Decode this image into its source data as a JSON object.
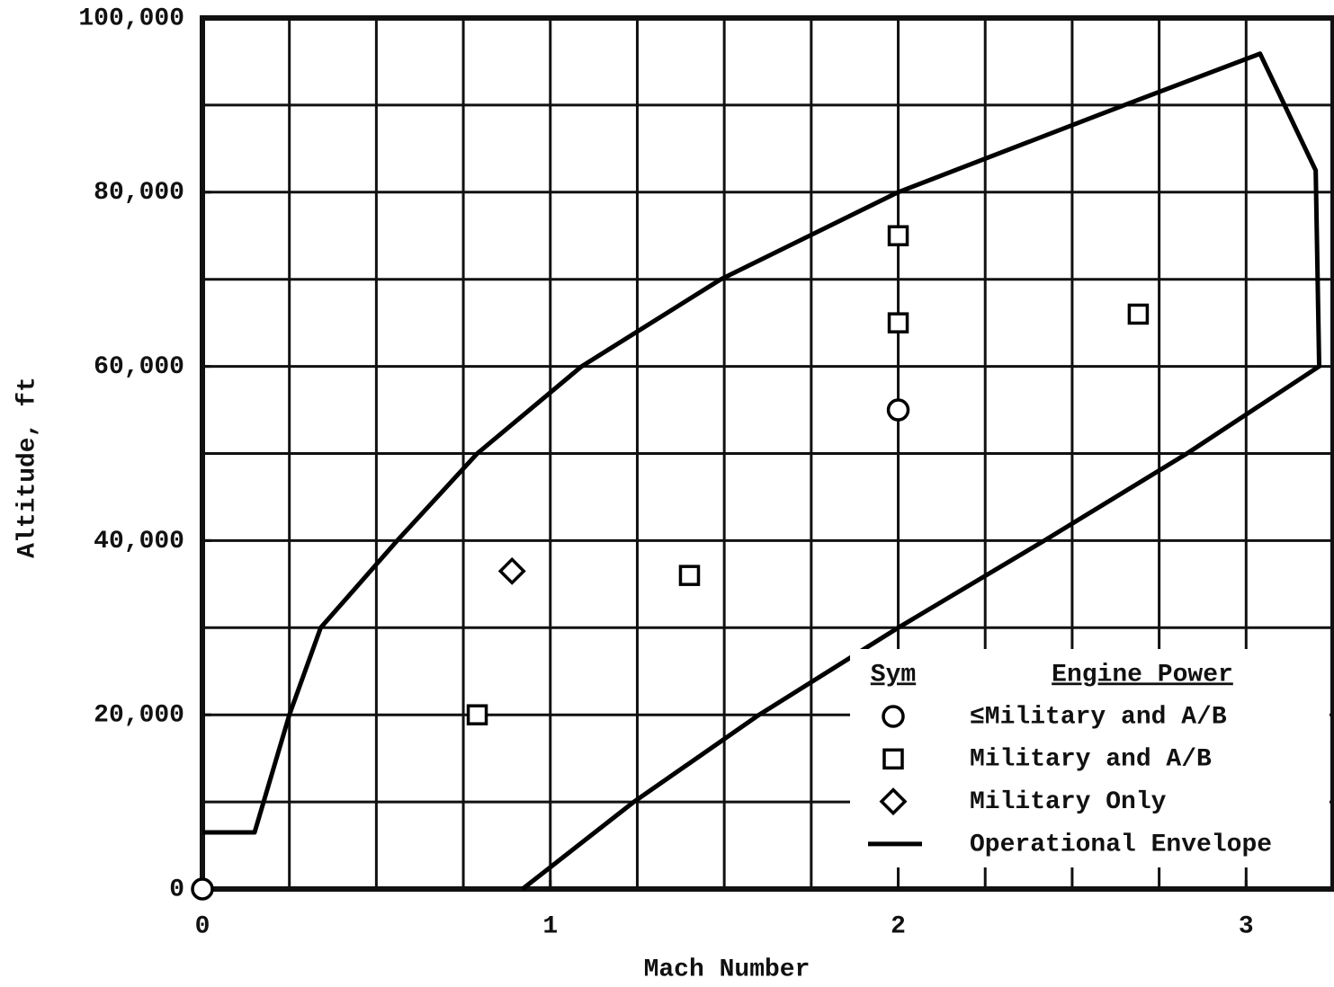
{
  "chart_data": {
    "type": "scatter",
    "xlabel": "Mach Number",
    "ylabel": "Altitude, ft",
    "xlim": [
      0,
      3.25
    ],
    "ylim": [
      0,
      100000
    ],
    "xticks": [
      0,
      1,
      2,
      3
    ],
    "yticks": [
      0,
      {
        "value": 20000,
        "label": "20,000"
      },
      {
        "value": 40000,
        "label": "40,000"
      },
      {
        "value": 60000,
        "label": "60,000"
      },
      {
        "value": 80000,
        "label": "80,000"
      },
      {
        "value": 100000,
        "label": "100,000"
      }
    ],
    "xgrid": [
      0.25,
      0.5,
      0.75,
      1,
      1.25,
      1.5,
      1.75,
      2,
      2.25,
      2.5,
      2.75,
      3
    ],
    "ygrid": [
      10000,
      20000,
      30000,
      40000,
      50000,
      60000,
      70000,
      80000,
      90000
    ],
    "grid": true,
    "legend": "lower right",
    "legend_headers": [
      "Sym",
      "Engine Power"
    ],
    "series": [
      {
        "name": "≤Military and A/B",
        "marker": "circle",
        "color": "#000000",
        "x": [
          0,
          2
        ],
        "values": [
          0,
          55000
        ]
      },
      {
        "name": "Military and A/B",
        "marker": "square",
        "color": "#000000",
        "x": [
          0.79,
          1.4,
          2,
          2,
          2.69
        ],
        "values": [
          20000,
          36000,
          65000,
          75000,
          66000
        ]
      },
      {
        "name": "Military Only",
        "marker": "diamond",
        "color": "#000000",
        "x": [
          0.89
        ],
        "values": [
          36500
        ]
      },
      {
        "name": "Operational Envelope",
        "marker": "line",
        "color": "#000000",
        "x": [
          0,
          0.15,
          0.25,
          0.34,
          0.56,
          0.79,
          1.09,
          1.49,
          2.0,
          2.65,
          3.04,
          3.2,
          3.21,
          2.83,
          2.42,
          2.0,
          1.6,
          1.24,
          0.92
        ],
        "values": [
          6500,
          6500,
          20000,
          30000,
          40000,
          50000,
          60000,
          70000,
          80000,
          90000,
          95900,
          82500,
          60000,
          50000,
          40000,
          30000,
          20000,
          10000,
          0
        ]
      }
    ]
  }
}
